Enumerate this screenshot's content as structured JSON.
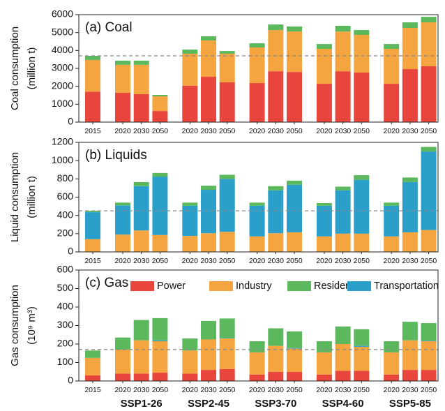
{
  "chart_data": [
    {
      "type": "bar",
      "stacked": true,
      "title": "(a) Coal",
      "ylabel": [
        "Coal consumption",
        "(million t)"
      ],
      "categories": [
        "2015",
        "2020",
        "2030",
        "2050",
        "2020",
        "2030",
        "2050",
        "2020",
        "2030",
        "2050",
        "2020",
        "2030",
        "2050",
        "2020",
        "2030",
        "2050"
      ],
      "ylim": [
        0,
        6000
      ],
      "yticks": [
        0,
        1000,
        2000,
        3000,
        4000,
        5000,
        6000
      ],
      "reference_line": 3700,
      "series": [
        {
          "name": "Power",
          "color": "#e8453c",
          "values": [
            1700,
            1640,
            1560,
            620,
            2030,
            2530,
            2220,
            2180,
            2840,
            2800,
            2140,
            2840,
            2770,
            2140,
            2960,
            3120
          ]
        },
        {
          "name": "Industry",
          "color": "#f5a540",
          "values": [
            1770,
            1560,
            1640,
            820,
            1790,
            2030,
            1600,
            1990,
            2300,
            2260,
            1950,
            2220,
            2100,
            1950,
            2300,
            2450
          ]
        },
        {
          "name": "Residential",
          "color": "#5cb85c",
          "values": [
            230,
            230,
            230,
            80,
            230,
            230,
            150,
            230,
            310,
            280,
            270,
            320,
            270,
            270,
            310,
            310
          ]
        }
      ]
    },
    {
      "type": "bar",
      "stacked": true,
      "title": "(b) Liquids",
      "ylabel": [
        "Liquid consumption",
        "(million t)"
      ],
      "categories": [
        "2015",
        "2020",
        "2030",
        "2050",
        "2020",
        "2030",
        "2050",
        "2020",
        "2030",
        "2050",
        "2020",
        "2030",
        "2050",
        "2020",
        "2030",
        "2050"
      ],
      "ylim": [
        0,
        1200
      ],
      "yticks": [
        0,
        200,
        400,
        600,
        800,
        1000,
        1200
      ],
      "reference_line": 450,
      "stack_order": [
        0,
        2,
        1
      ],
      "series": [
        {
          "name": "Industry",
          "color": "#f5a540",
          "values": [
            140,
            190,
            235,
            185,
            175,
            205,
            220,
            170,
            205,
            215,
            170,
            200,
            200,
            170,
            215,
            240
          ]
        },
        {
          "name": "Residential",
          "color": "#5cb85c",
          "values": [
            15,
            30,
            45,
            40,
            35,
            45,
            45,
            35,
            45,
            45,
            30,
            40,
            50,
            35,
            50,
            50
          ]
        },
        {
          "name": "Transportation",
          "color": "#2a9fc9",
          "values": [
            295,
            320,
            485,
            640,
            330,
            475,
            580,
            335,
            470,
            520,
            335,
            475,
            590,
            335,
            550,
            860
          ]
        }
      ]
    },
    {
      "type": "bar",
      "stacked": true,
      "title": "(c) Gas",
      "ylabel": [
        "Gas consumption",
        "(10⁹ m³)"
      ],
      "categories": [
        "2015",
        "2020",
        "2030",
        "2050",
        "2020",
        "2030",
        "2050",
        "2020",
        "2030",
        "2050",
        "2020",
        "2030",
        "2050",
        "2020",
        "2030",
        "2050"
      ],
      "groups": [
        "SSP1-26",
        "SSP2-45",
        "SSP3-70",
        "SSP4-60",
        "SSP5-85"
      ],
      "ylim": [
        0,
        600
      ],
      "yticks": [
        0,
        100,
        200,
        300,
        400,
        500,
        600
      ],
      "reference_line": 170,
      "legend": "top",
      "stack_order": [
        0,
        1,
        3,
        2
      ],
      "series": [
        {
          "name": "Power",
          "color": "#e8453c",
          "values": [
            30,
            40,
            40,
            45,
            40,
            60,
            65,
            35,
            50,
            50,
            35,
            55,
            55,
            35,
            60,
            60
          ]
        },
        {
          "name": "Industry",
          "color": "#f5a540",
          "values": [
            95,
            130,
            180,
            170,
            125,
            165,
            165,
            120,
            140,
            125,
            120,
            145,
            130,
            120,
            160,
            155
          ]
        },
        {
          "name": "Residential",
          "color": "#5cb85c",
          "values": [
            40,
            65,
            110,
            120,
            65,
            100,
            105,
            60,
            95,
            90,
            60,
            95,
            90,
            60,
            100,
            95
          ]
        },
        {
          "name": "Transportation",
          "color": "#2a9fc9",
          "values": [
            0,
            0,
            0,
            5,
            0,
            0,
            3,
            0,
            0,
            3,
            0,
            0,
            5,
            0,
            0,
            3
          ]
        }
      ]
    }
  ]
}
